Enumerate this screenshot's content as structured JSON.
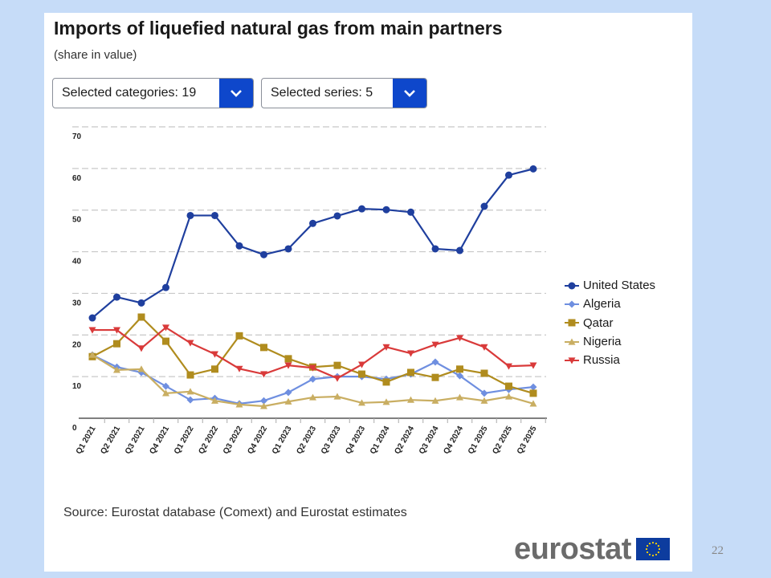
{
  "header": {
    "title": "Imports of liquefied natural gas from main partners",
    "subtitle": "(share in value)"
  },
  "controls": {
    "categories_label": "Selected categories: 19",
    "series_label": "Selected series: 5"
  },
  "footer": {
    "source": "Source: Eurostat database (Comext) and Eurostat estimates",
    "logo_text": "eurostat",
    "page_number": "22"
  },
  "chart_data": {
    "type": "line",
    "title": "Imports of liquefied natural gas from main partners",
    "subtitle": "(share in value)",
    "xlabel": "",
    "ylabel": "",
    "ylim": [
      0,
      70
    ],
    "yticks": [
      "0",
      "10",
      "20",
      "30",
      "40",
      "50",
      "60",
      "70"
    ],
    "grid": true,
    "legend_position": "right",
    "categories": [
      "Q1 2021",
      "Q2 2021",
      "Q3 2021",
      "Q4 2021",
      "Q1 2022",
      "Q2 2022",
      "Q3 2022",
      "Q4 2022",
      "Q1 2023",
      "Q2 2023",
      "Q3 2023",
      "Q4 2023",
      "Q1 2024",
      "Q2 2024",
      "Q3 2024",
      "Q4 2024",
      "Q1 2025",
      "Q2 2025",
      "Q3 2025"
    ],
    "series": [
      {
        "name": "United States",
        "color": "#1f3f9e",
        "marker": "circle",
        "values": [
          24.1,
          29.1,
          27.7,
          31.4,
          48.7,
          48.7,
          41.4,
          39.3,
          40.7,
          46.8,
          48.6,
          50.3,
          50.1,
          49.5,
          40.7,
          40.3,
          50.9,
          58.4,
          59.9
        ]
      },
      {
        "name": "Algeria",
        "color": "#6f8fe0",
        "marker": "diamond",
        "values": [
          15.2,
          12.3,
          11.0,
          7.7,
          4.4,
          4.8,
          3.5,
          4.2,
          6.2,
          9.4,
          10.0,
          10.0,
          9.4,
          10.6,
          13.5,
          10.2,
          6.0,
          6.9,
          7.5
        ]
      },
      {
        "name": "Qatar",
        "color": "#b08c1e",
        "marker": "square",
        "values": [
          14.8,
          17.9,
          24.3,
          18.5,
          10.4,
          11.8,
          19.8,
          17.0,
          14.3,
          12.3,
          12.7,
          10.6,
          8.7,
          11.0,
          9.8,
          11.8,
          10.8,
          7.7,
          6.0
        ]
      },
      {
        "name": "Nigeria",
        "color": "#c9ae62",
        "marker": "triangle-up",
        "values": [
          15.2,
          11.6,
          11.8,
          6.0,
          6.4,
          4.2,
          3.3,
          2.9,
          4.0,
          5.0,
          5.2,
          3.7,
          3.9,
          4.4,
          4.2,
          5.0,
          4.2,
          5.2,
          3.5
        ]
      },
      {
        "name": "Russia",
        "color": "#d93a3a",
        "marker": "triangle-down",
        "values": [
          21.2,
          21.2,
          16.8,
          21.8,
          18.1,
          15.4,
          11.9,
          10.6,
          12.7,
          12.1,
          9.6,
          12.9,
          17.1,
          15.6,
          17.7,
          19.3,
          17.1,
          12.5,
          12.7
        ]
      }
    ]
  }
}
